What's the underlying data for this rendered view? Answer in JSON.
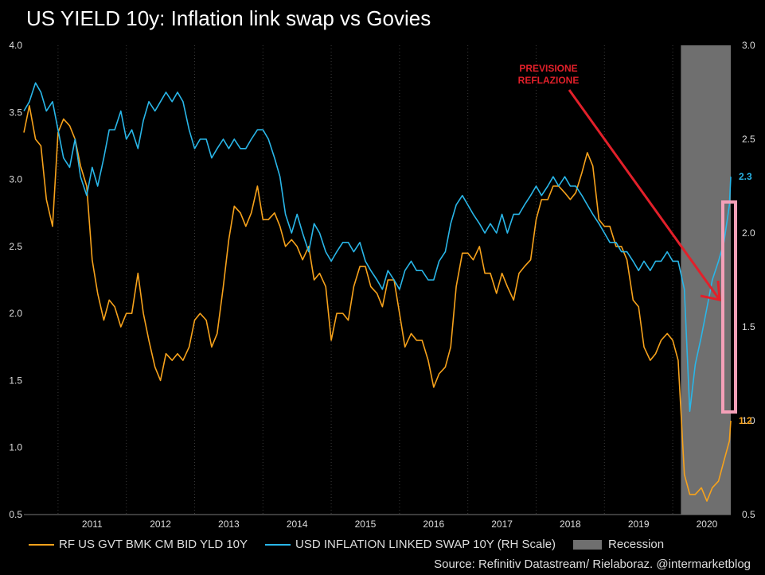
{
  "title": "US YIELD 10y: Inflation link swap vs Govies",
  "legend": {
    "yield_label": "RF US GVT BMK CM BID YLD 10Y",
    "swap_label": "USD INFLATION LINKED SWAP 10Y (RH Scale)",
    "recession_label": "Recession"
  },
  "source": "Source: Refinitiv Datastream/ Rielaboraz. @intermarketblog",
  "annotation": {
    "line1": "PREVISIONE",
    "line2": "REFLAZIONE"
  },
  "colors": {
    "yield": "#f7a21b",
    "swap": "#29b6e8",
    "recession": "#6f6f6f",
    "annotation": "#e2202a",
    "box": "#f4a0b8",
    "background": "#000000"
  },
  "chart_data": {
    "type": "line",
    "x_ticks": [
      "2011",
      "2012",
      "2013",
      "2014",
      "2015",
      "2016",
      "2017",
      "2018",
      "2019",
      "2020"
    ],
    "ylim_left": [
      0.5,
      4.0
    ],
    "yticks_left": [
      "0.5",
      "1.0",
      "1.5",
      "2.0",
      "2.5",
      "3.0",
      "3.5",
      "4.0"
    ],
    "ylim_right": [
      0.5,
      3.0
    ],
    "yticks_right": [
      "0.5",
      "1.0",
      "1.5",
      "2.0",
      "2.5",
      "3.0"
    ],
    "xlim": [
      2010.5,
      2020.85
    ],
    "recession": [
      2020.12,
      2020.85
    ],
    "series": [
      {
        "name": "RF US GVT BMK CM BID YLD 10Y",
        "axis": "left",
        "last_label": "1.2",
        "points": [
          [
            2010.5,
            3.35
          ],
          [
            2010.58,
            3.55
          ],
          [
            2010.67,
            3.3
          ],
          [
            2010.75,
            3.25
          ],
          [
            2010.83,
            2.85
          ],
          [
            2010.92,
            2.65
          ],
          [
            2011.0,
            3.35
          ],
          [
            2011.08,
            3.45
          ],
          [
            2011.17,
            3.4
          ],
          [
            2011.25,
            3.3
          ],
          [
            2011.33,
            3.1
          ],
          [
            2011.42,
            2.95
          ],
          [
            2011.5,
            2.4
          ],
          [
            2011.58,
            2.15
          ],
          [
            2011.67,
            1.95
          ],
          [
            2011.75,
            2.1
          ],
          [
            2011.83,
            2.05
          ],
          [
            2011.92,
            1.9
          ],
          [
            2012.0,
            2.0
          ],
          [
            2012.08,
            2.0
          ],
          [
            2012.17,
            2.3
          ],
          [
            2012.25,
            2.0
          ],
          [
            2012.33,
            1.8
          ],
          [
            2012.42,
            1.6
          ],
          [
            2012.5,
            1.5
          ],
          [
            2012.58,
            1.7
          ],
          [
            2012.67,
            1.65
          ],
          [
            2012.75,
            1.7
          ],
          [
            2012.83,
            1.65
          ],
          [
            2012.92,
            1.75
          ],
          [
            2013.0,
            1.95
          ],
          [
            2013.08,
            2.0
          ],
          [
            2013.17,
            1.95
          ],
          [
            2013.25,
            1.75
          ],
          [
            2013.33,
            1.85
          ],
          [
            2013.42,
            2.2
          ],
          [
            2013.5,
            2.55
          ],
          [
            2013.58,
            2.8
          ],
          [
            2013.67,
            2.75
          ],
          [
            2013.75,
            2.65
          ],
          [
            2013.83,
            2.75
          ],
          [
            2013.92,
            2.95
          ],
          [
            2014.0,
            2.7
          ],
          [
            2014.08,
            2.7
          ],
          [
            2014.17,
            2.75
          ],
          [
            2014.25,
            2.65
          ],
          [
            2014.33,
            2.5
          ],
          [
            2014.42,
            2.55
          ],
          [
            2014.5,
            2.5
          ],
          [
            2014.58,
            2.4
          ],
          [
            2014.67,
            2.5
          ],
          [
            2014.75,
            2.25
          ],
          [
            2014.83,
            2.3
          ],
          [
            2014.92,
            2.2
          ],
          [
            2015.0,
            1.8
          ],
          [
            2015.08,
            2.0
          ],
          [
            2015.17,
            2.0
          ],
          [
            2015.25,
            1.95
          ],
          [
            2015.33,
            2.2
          ],
          [
            2015.42,
            2.35
          ],
          [
            2015.5,
            2.35
          ],
          [
            2015.58,
            2.2
          ],
          [
            2015.67,
            2.15
          ],
          [
            2015.75,
            2.05
          ],
          [
            2015.83,
            2.25
          ],
          [
            2015.92,
            2.25
          ],
          [
            2016.0,
            2.0
          ],
          [
            2016.08,
            1.75
          ],
          [
            2016.17,
            1.85
          ],
          [
            2016.25,
            1.8
          ],
          [
            2016.33,
            1.8
          ],
          [
            2016.42,
            1.65
          ],
          [
            2016.5,
            1.45
          ],
          [
            2016.58,
            1.55
          ],
          [
            2016.67,
            1.6
          ],
          [
            2016.75,
            1.75
          ],
          [
            2016.83,
            2.2
          ],
          [
            2016.92,
            2.45
          ],
          [
            2017.0,
            2.45
          ],
          [
            2017.08,
            2.4
          ],
          [
            2017.17,
            2.5
          ],
          [
            2017.25,
            2.3
          ],
          [
            2017.33,
            2.3
          ],
          [
            2017.42,
            2.15
          ],
          [
            2017.5,
            2.3
          ],
          [
            2017.58,
            2.2
          ],
          [
            2017.67,
            2.1
          ],
          [
            2017.75,
            2.3
          ],
          [
            2017.83,
            2.35
          ],
          [
            2017.92,
            2.4
          ],
          [
            2018.0,
            2.7
          ],
          [
            2018.08,
            2.85
          ],
          [
            2018.17,
            2.85
          ],
          [
            2018.25,
            2.95
          ],
          [
            2018.33,
            2.95
          ],
          [
            2018.42,
            2.9
          ],
          [
            2018.5,
            2.85
          ],
          [
            2018.58,
            2.9
          ],
          [
            2018.67,
            3.05
          ],
          [
            2018.75,
            3.2
          ],
          [
            2018.83,
            3.1
          ],
          [
            2018.92,
            2.7
          ],
          [
            2019.0,
            2.65
          ],
          [
            2019.08,
            2.65
          ],
          [
            2019.17,
            2.5
          ],
          [
            2019.25,
            2.5
          ],
          [
            2019.33,
            2.4
          ],
          [
            2019.42,
            2.1
          ],
          [
            2019.5,
            2.05
          ],
          [
            2019.58,
            1.75
          ],
          [
            2019.67,
            1.65
          ],
          [
            2019.75,
            1.7
          ],
          [
            2019.83,
            1.8
          ],
          [
            2019.92,
            1.85
          ],
          [
            2020.0,
            1.8
          ],
          [
            2020.08,
            1.65
          ],
          [
            2020.17,
            0.8
          ],
          [
            2020.25,
            0.65
          ],
          [
            2020.33,
            0.65
          ],
          [
            2020.42,
            0.7
          ],
          [
            2020.5,
            0.6
          ],
          [
            2020.58,
            0.7
          ],
          [
            2020.67,
            0.75
          ],
          [
            2020.75,
            0.9
          ],
          [
            2020.83,
            1.05
          ],
          [
            2020.85,
            1.2
          ]
        ]
      },
      {
        "name": "USD INFLATION LINKED SWAP 10Y (RH Scale)",
        "axis": "right",
        "last_label": "2.3",
        "points": [
          [
            2010.5,
            2.65
          ],
          [
            2010.58,
            2.7
          ],
          [
            2010.67,
            2.8
          ],
          [
            2010.75,
            2.75
          ],
          [
            2010.83,
            2.65
          ],
          [
            2010.92,
            2.7
          ],
          [
            2011.0,
            2.55
          ],
          [
            2011.08,
            2.4
          ],
          [
            2011.17,
            2.35
          ],
          [
            2011.25,
            2.5
          ],
          [
            2011.33,
            2.3
          ],
          [
            2011.42,
            2.2
          ],
          [
            2011.5,
            2.35
          ],
          [
            2011.58,
            2.25
          ],
          [
            2011.67,
            2.4
          ],
          [
            2011.75,
            2.55
          ],
          [
            2011.83,
            2.55
          ],
          [
            2011.92,
            2.65
          ],
          [
            2012.0,
            2.5
          ],
          [
            2012.08,
            2.55
          ],
          [
            2012.17,
            2.45
          ],
          [
            2012.25,
            2.6
          ],
          [
            2012.33,
            2.7
          ],
          [
            2012.42,
            2.65
          ],
          [
            2012.5,
            2.7
          ],
          [
            2012.58,
            2.75
          ],
          [
            2012.67,
            2.7
          ],
          [
            2012.75,
            2.75
          ],
          [
            2012.83,
            2.7
          ],
          [
            2012.92,
            2.55
          ],
          [
            2013.0,
            2.45
          ],
          [
            2013.08,
            2.5
          ],
          [
            2013.17,
            2.5
          ],
          [
            2013.25,
            2.4
          ],
          [
            2013.33,
            2.45
          ],
          [
            2013.42,
            2.5
          ],
          [
            2013.5,
            2.45
          ],
          [
            2013.58,
            2.5
          ],
          [
            2013.67,
            2.45
          ],
          [
            2013.75,
            2.45
          ],
          [
            2013.83,
            2.5
          ],
          [
            2013.92,
            2.55
          ],
          [
            2014.0,
            2.55
          ],
          [
            2014.08,
            2.5
          ],
          [
            2014.17,
            2.4
          ],
          [
            2014.25,
            2.3
          ],
          [
            2014.33,
            2.1
          ],
          [
            2014.42,
            2.0
          ],
          [
            2014.5,
            2.1
          ],
          [
            2014.58,
            2.0
          ],
          [
            2014.67,
            1.9
          ],
          [
            2014.75,
            2.05
          ],
          [
            2014.83,
            2.0
          ],
          [
            2014.92,
            1.9
          ],
          [
            2015.0,
            1.85
          ],
          [
            2015.08,
            1.9
          ],
          [
            2015.17,
            1.95
          ],
          [
            2015.25,
            1.95
          ],
          [
            2015.33,
            1.9
          ],
          [
            2015.42,
            1.95
          ],
          [
            2015.5,
            1.85
          ],
          [
            2015.58,
            1.8
          ],
          [
            2015.67,
            1.75
          ],
          [
            2015.75,
            1.7
          ],
          [
            2015.83,
            1.8
          ],
          [
            2015.92,
            1.75
          ],
          [
            2016.0,
            1.7
          ],
          [
            2016.08,
            1.8
          ],
          [
            2016.17,
            1.85
          ],
          [
            2016.25,
            1.8
          ],
          [
            2016.33,
            1.8
          ],
          [
            2016.42,
            1.75
          ],
          [
            2016.5,
            1.75
          ],
          [
            2016.58,
            1.85
          ],
          [
            2016.67,
            1.9
          ],
          [
            2016.75,
            2.05
          ],
          [
            2016.83,
            2.15
          ],
          [
            2016.92,
            2.2
          ],
          [
            2017.0,
            2.15
          ],
          [
            2017.08,
            2.1
          ],
          [
            2017.17,
            2.05
          ],
          [
            2017.25,
            2.0
          ],
          [
            2017.33,
            2.05
          ],
          [
            2017.42,
            2.0
          ],
          [
            2017.5,
            2.1
          ],
          [
            2017.58,
            2.0
          ],
          [
            2017.67,
            2.1
          ],
          [
            2017.75,
            2.1
          ],
          [
            2017.83,
            2.15
          ],
          [
            2017.92,
            2.2
          ],
          [
            2018.0,
            2.25
          ],
          [
            2018.08,
            2.2
          ],
          [
            2018.17,
            2.25
          ],
          [
            2018.25,
            2.3
          ],
          [
            2018.33,
            2.25
          ],
          [
            2018.42,
            2.3
          ],
          [
            2018.5,
            2.25
          ],
          [
            2018.58,
            2.25
          ],
          [
            2018.67,
            2.2
          ],
          [
            2018.75,
            2.15
          ],
          [
            2018.83,
            2.1
          ],
          [
            2018.92,
            2.05
          ],
          [
            2019.0,
            2.0
          ],
          [
            2019.08,
            1.95
          ],
          [
            2019.17,
            1.95
          ],
          [
            2019.25,
            1.9
          ],
          [
            2019.33,
            1.9
          ],
          [
            2019.42,
            1.85
          ],
          [
            2019.5,
            1.8
          ],
          [
            2019.58,
            1.85
          ],
          [
            2019.67,
            1.8
          ],
          [
            2019.75,
            1.85
          ],
          [
            2019.83,
            1.85
          ],
          [
            2019.92,
            1.9
          ],
          [
            2020.0,
            1.85
          ],
          [
            2020.08,
            1.85
          ],
          [
            2020.17,
            1.7
          ],
          [
            2020.25,
            1.05
          ],
          [
            2020.33,
            1.3
          ],
          [
            2020.42,
            1.45
          ],
          [
            2020.5,
            1.6
          ],
          [
            2020.58,
            1.75
          ],
          [
            2020.67,
            1.85
          ],
          [
            2020.75,
            1.95
          ],
          [
            2020.83,
            2.15
          ],
          [
            2020.85,
            2.3
          ]
        ]
      }
    ]
  }
}
